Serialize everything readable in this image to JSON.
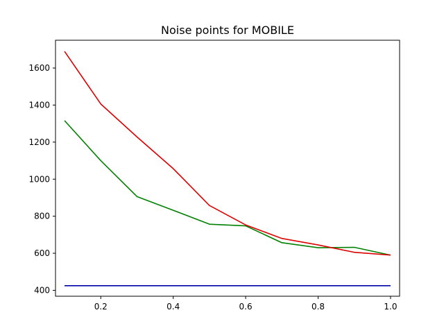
{
  "chart_data": {
    "type": "line",
    "title": "Noise points for MOBILE",
    "xlabel": "",
    "ylabel": "",
    "xlim": [
      0.075,
      1.025
    ],
    "ylim": [
      368,
      1750
    ],
    "grid": false,
    "x": [
      0.1,
      0.2,
      0.3,
      0.4,
      0.5,
      0.6,
      0.7,
      0.8,
      0.9,
      1.0
    ],
    "x_ticks": [
      0.2,
      0.4,
      0.6,
      0.8,
      1.0
    ],
    "x_tick_labels": [
      "0.2",
      "0.4",
      "0.6",
      "0.8",
      "1.0"
    ],
    "y_ticks": [
      400,
      600,
      800,
      1000,
      1200,
      1400,
      1600
    ],
    "y_tick_labels": [
      "400",
      "600",
      "800",
      "1000",
      "1200",
      "1400",
      "1600"
    ],
    "series": [
      {
        "color": "#0000aa",
        "values": [
          425,
          425,
          425,
          425,
          425,
          425,
          425,
          425,
          425,
          425
        ]
      },
      {
        "color": "#008000",
        "values": [
          1316,
          1100,
          906,
          832,
          757,
          748,
          657,
          630,
          632,
          590
        ]
      },
      {
        "color": "#dd0000",
        "values": [
          1690,
          1406,
          1228,
          1057,
          858,
          753,
          680,
          645,
          605,
          590
        ]
      }
    ]
  }
}
